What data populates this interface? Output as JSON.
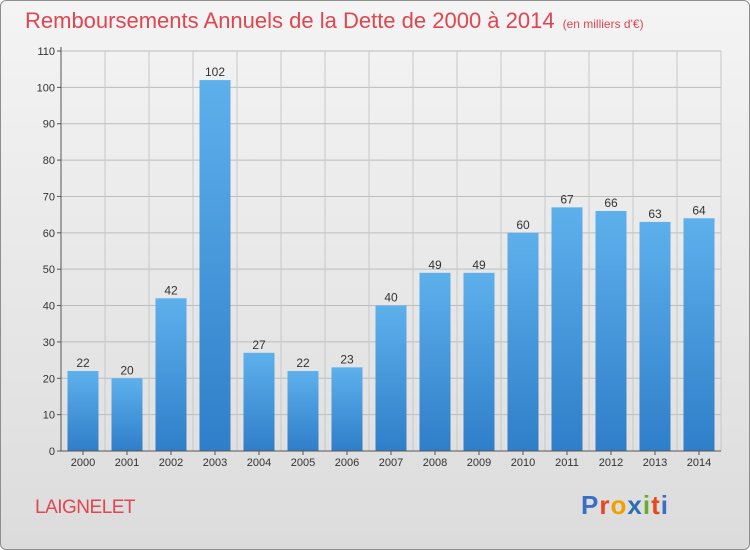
{
  "chart_data": {
    "type": "bar",
    "title": "Remboursements Annuels de la Dette de 2000 à 2014",
    "unit": "(en milliers d'€)",
    "categories": [
      "2000",
      "2001",
      "2002",
      "2003",
      "2004",
      "2005",
      "2006",
      "2007",
      "2008",
      "2009",
      "2010",
      "2011",
      "2012",
      "2013",
      "2014"
    ],
    "values": [
      22,
      20,
      42,
      102,
      27,
      22,
      23,
      40,
      49,
      49,
      60,
      67,
      66,
      63,
      64
    ],
    "ylim": [
      0,
      110
    ],
    "yticks": [
      0,
      10,
      20,
      30,
      40,
      50,
      60,
      70,
      80,
      90,
      100,
      110
    ],
    "xlabel": "",
    "ylabel": "",
    "grid": true,
    "bar_color": "#3f8fd6"
  },
  "place_name": "LAIGNELET",
  "logo": {
    "text": "Proxiti",
    "letters": [
      "P",
      "r",
      "o",
      "x",
      "i",
      "t",
      "i"
    ],
    "colors": [
      "#3b6fc4",
      "#e8471d",
      "#f0a000",
      "#2a6fb4",
      "#6aab2a",
      "#e8471d",
      "#3b6fc4"
    ]
  }
}
